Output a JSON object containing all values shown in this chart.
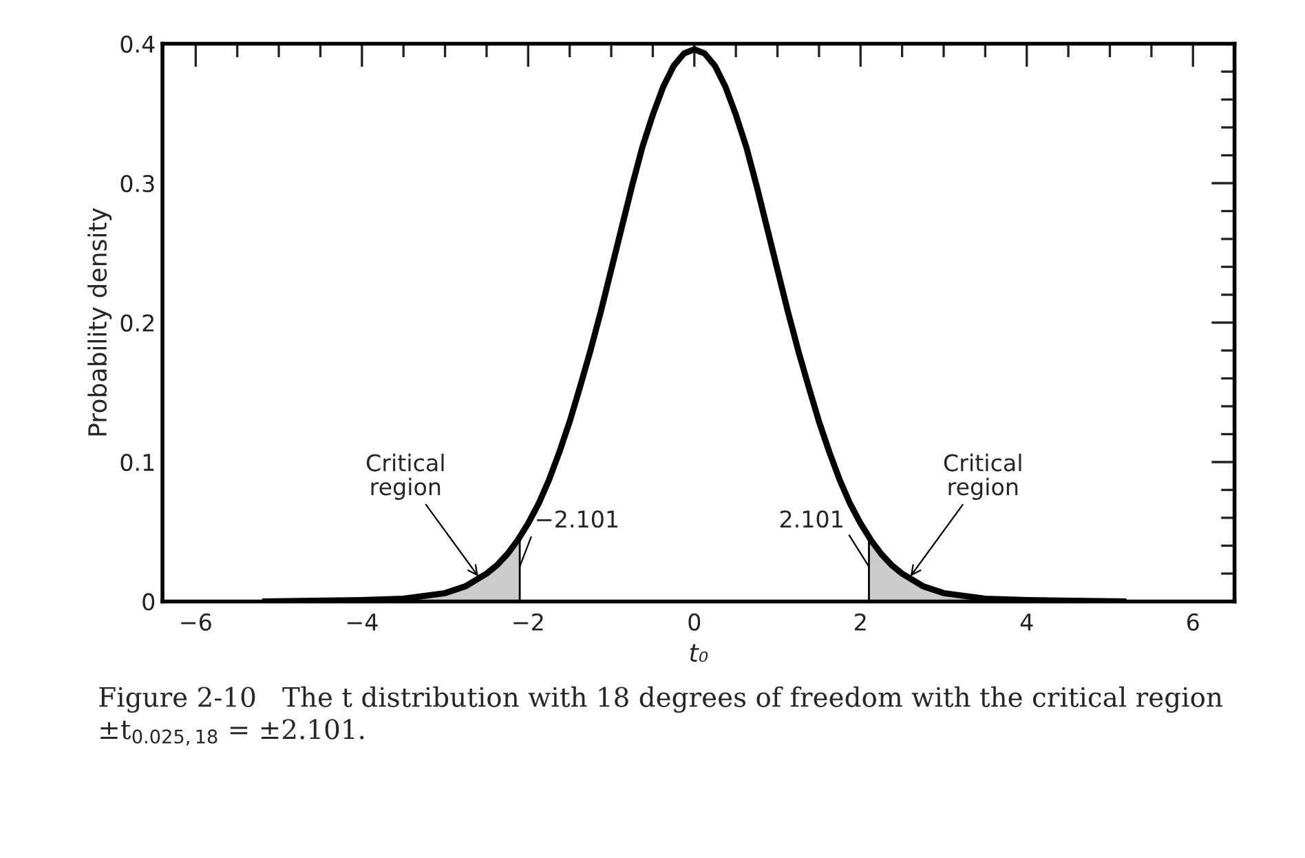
{
  "chart_data": {
    "type": "line",
    "xlabel": "t₀",
    "ylabel": "Probability density",
    "xlim": [
      -6.4,
      6.5
    ],
    "ylim": [
      0,
      0.4
    ],
    "xticks": [
      {
        "value": -6,
        "label": "−6"
      },
      {
        "value": -4,
        "label": "−4"
      },
      {
        "value": -2,
        "label": "−2"
      },
      0,
      2,
      4,
      6
    ],
    "yticks": [
      0,
      0.1,
      0.2,
      0.3,
      0.4
    ],
    "series": [
      {
        "type": "area",
        "color": "#cccccc",
        "x": [
          -5.2,
          -4,
          -3.5,
          -3,
          -2.75,
          -2.5,
          -2.25,
          -2.101
        ],
        "values": [
          0,
          0.001,
          0.002,
          0.006,
          0.011,
          0.02,
          0.034,
          0.046
        ]
      },
      {
        "type": "area",
        "color": "#cccccc",
        "x": [
          2.101,
          2.25,
          2.5,
          2.75,
          3,
          3.5,
          4,
          5.2
        ],
        "values": [
          0.046,
          0.034,
          0.02,
          0.011,
          0.006,
          0.002,
          0.001,
          0
        ]
      },
      {
        "color": "#000000",
        "x": [
          -5.2,
          -4,
          -3.5,
          -3,
          -2.75,
          -2.5,
          -2.375,
          -2.25,
          -2.125,
          -2,
          -1.875,
          -1.75,
          -1.625,
          -1.5,
          -1.375,
          -1.25,
          -1.125,
          -1,
          -0.875,
          -0.75,
          -0.625,
          -0.5,
          -0.375,
          -0.25,
          -0.125,
          0,
          0.125,
          0.25,
          0.375,
          0.5,
          0.625,
          0.75,
          0.875,
          1,
          1.125,
          1.25,
          1.375,
          1.5,
          1.625,
          1.75,
          1.875,
          2,
          2.125,
          2.25,
          2.375,
          2.5,
          2.75,
          3,
          3.5,
          4,
          5.2
        ],
        "values": [
          0,
          0.001,
          0.002,
          0.006,
          0.011,
          0.02,
          0.026,
          0.034,
          0.044,
          0.056,
          0.07,
          0.087,
          0.107,
          0.129,
          0.154,
          0.18,
          0.208,
          0.238,
          0.268,
          0.298,
          0.326,
          0.349,
          0.369,
          0.384,
          0.393,
          0.396,
          0.393,
          0.384,
          0.369,
          0.349,
          0.326,
          0.298,
          0.268,
          0.238,
          0.208,
          0.18,
          0.154,
          0.129,
          0.107,
          0.087,
          0.07,
          0.056,
          0.044,
          0.034,
          0.026,
          0.02,
          0.011,
          0.006,
          0.002,
          0.001,
          0
        ]
      }
    ],
    "annotations": [
      {
        "text": "Critical\nregion",
        "x": -2.6,
        "y": 0.018
      },
      {
        "text": "−2.101",
        "x": -2.101,
        "y": 0.025
      },
      {
        "text": "2.101",
        "x": 2.101,
        "y": 0.025
      },
      {
        "text": "Critical\nregion",
        "x": 2.6,
        "y": 0.018
      },
      "Figure 2-10   The t distribution with 18 degrees of freedom with the critical region ±t$_{0.025,18}$ = ±2.101."
    ],
    "grid": false,
    "legend": false
  }
}
